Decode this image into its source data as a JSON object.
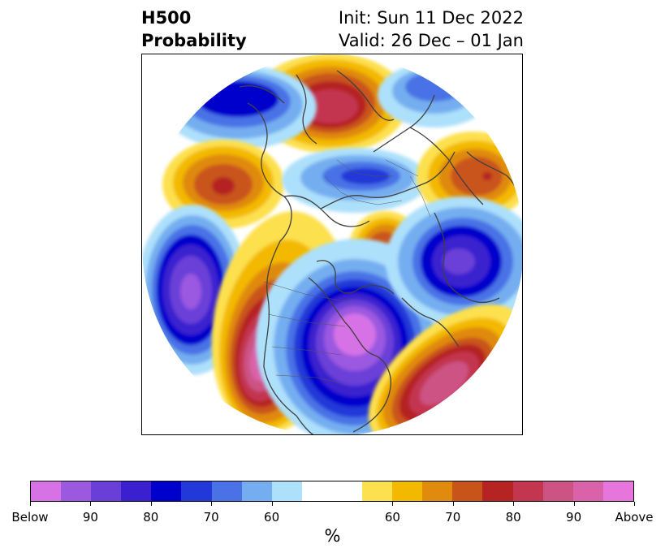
{
  "title": {
    "left_line1": "H500",
    "left_line2": "Probability",
    "right_line1": "Init: Sun 11 Dec 2022",
    "right_line2": "Valid: 26 Dec – 01 Jan"
  },
  "map": {
    "projection": "north-polar-stereographic",
    "coastline_color": "#404040",
    "anomalies": [
      {
        "region": "Arctic north of Siberia",
        "sign": "above",
        "peak_pct": 85
      },
      {
        "region": "Alaska / Gulf of Alaska",
        "sign": "above",
        "peak_pct": 80
      },
      {
        "region": "North Pacific",
        "sign": "below",
        "peak_pct": 95
      },
      {
        "region": "Western North America",
        "sign": "above",
        "peak_pct": 95
      },
      {
        "region": "Central and Eastern North America",
        "sign": "below",
        "peak_pct": 100
      },
      {
        "region": "Western North Atlantic",
        "sign": "above",
        "peak_pct": 95
      },
      {
        "region": "Greenland / Iceland",
        "sign": "above",
        "peak_pct": 75
      },
      {
        "region": "Northern Europe",
        "sign": "below",
        "peak_pct": 95
      },
      {
        "region": "Central Siberia",
        "sign": "below",
        "peak_pct": 75
      },
      {
        "region": "Ural / Western Russia",
        "sign": "above",
        "peak_pct": 80
      }
    ]
  },
  "colorbar": {
    "below_colors": [
      "#d672e6",
      "#9b59e0",
      "#6a3fd8",
      "#3a20cf",
      "#0000cc",
      "#2238d8",
      "#4a72e6",
      "#74aef0",
      "#ade0fb"
    ],
    "neutral_color": "#ffffff",
    "above_colors": [
      "#fde04e",
      "#f3b900",
      "#e08a0e",
      "#c9541a",
      "#b52323",
      "#c3364f",
      "#cc5383",
      "#d962a8",
      "#e676dc"
    ],
    "tick_labels": [
      "Below",
      "90",
      "80",
      "70",
      "60",
      "60",
      "70",
      "80",
      "90",
      "Above"
    ],
    "label": "%"
  }
}
